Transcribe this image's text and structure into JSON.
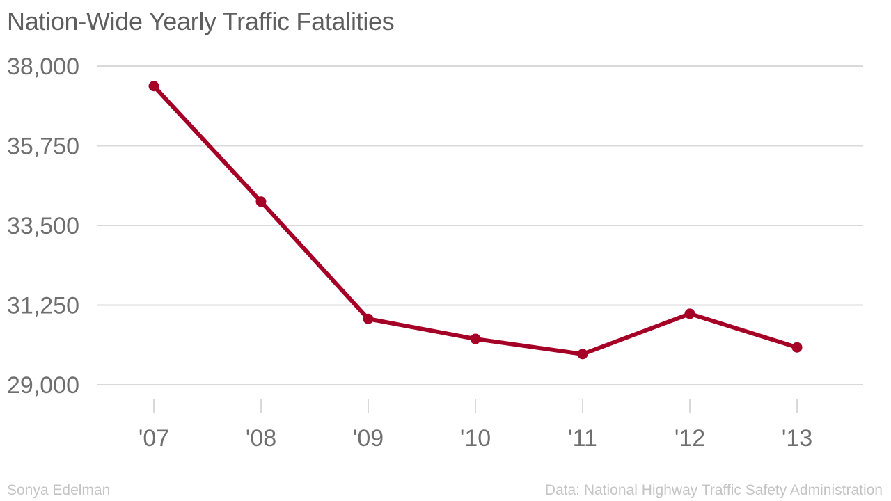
{
  "title": "Nation-Wide Yearly Traffic Fatalities",
  "credit": "Sonya Edelman",
  "source": "Data: National Highway Traffic Safety Administration",
  "colors": {
    "line": "#a50026",
    "grid": "#d9d9d9",
    "text": "#5e5e5e",
    "footer": "#c4c4c4"
  },
  "chart_data": {
    "type": "line",
    "title": "Nation-Wide Yearly Traffic Fatalities",
    "xlabel": "",
    "ylabel": "",
    "categories": [
      "'07",
      "'08",
      "'09",
      "'10",
      "'11",
      "'12",
      "'13"
    ],
    "series": [
      {
        "values": [
          37435,
          34172,
          30862,
          30296,
          29867,
          31006,
          30057
        ]
      }
    ],
    "ylim": [
      29000,
      38000
    ],
    "yticks": [
      29000,
      31250,
      33500,
      35750,
      38000
    ],
    "ytick_labels": [
      "29,000",
      "31,250",
      "33,500",
      "35,750",
      "38,000"
    ],
    "grid": true,
    "legend": "none",
    "markers": true
  }
}
